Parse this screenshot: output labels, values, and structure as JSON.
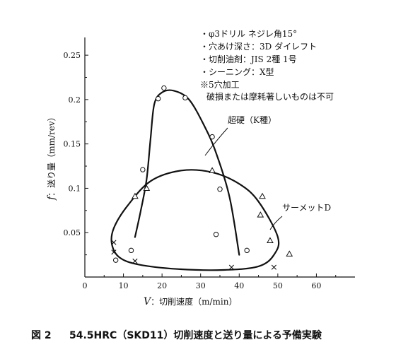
{
  "chart_data": {
    "type": "scatter",
    "title": "",
    "xlabel_var": "V",
    "xlabel": "：切削速度（m/min）",
    "ylabel_var": "f",
    "ylabel": "：送り量（mm/rev）",
    "xlim": [
      0,
      70
    ],
    "ylim": [
      0,
      0.27
    ],
    "x_ticks": [
      "0",
      "10",
      "20",
      "30",
      "40",
      "50",
      "60"
    ],
    "x_tick_values": [
      0,
      10,
      20,
      30,
      40,
      50,
      60
    ],
    "y_ticks": [
      "0.05",
      "0.1",
      "0.15",
      "0.2",
      "0.25"
    ],
    "y_tick_values": [
      0.05,
      0.1,
      0.15,
      0.2,
      0.25
    ],
    "grid": false,
    "notes": [
      "・φ3ドリル ネジレ角15°",
      "・穴あけ深さ：3D ダイレフト",
      "・切削油剤：JIS 2種 1号",
      "・シーニング：X型",
      "※5穴加工",
      "破損または摩耗著しいものは不可"
    ],
    "series": [
      {
        "marker": "circle",
        "points": [
          [
            8,
            0.019
          ],
          [
            12,
            0.03
          ],
          [
            15,
            0.121
          ],
          [
            19,
            0.201
          ],
          [
            20.5,
            0.213
          ],
          [
            26,
            0.202
          ],
          [
            33,
            0.158
          ],
          [
            35,
            0.099
          ],
          [
            34,
            0.048
          ],
          [
            42,
            0.03
          ]
        ]
      },
      {
        "marker": "triangle",
        "points": [
          [
            13,
            0.091
          ],
          [
            16,
            0.1
          ],
          [
            33,
            0.12
          ],
          [
            46,
            0.091
          ],
          [
            45.5,
            0.07
          ],
          [
            48,
            0.041
          ],
          [
            53,
            0.026
          ]
        ]
      },
      {
        "marker": "cross",
        "points": [
          [
            7.5,
            0.039
          ],
          [
            7.5,
            0.028
          ],
          [
            13,
            0.018
          ],
          [
            38,
            0.011
          ],
          [
            49,
            0.011
          ]
        ]
      }
    ],
    "regions": [
      {
        "name": "超硬（K種）",
        "boundary": [
          [
            13,
            0.045
          ],
          [
            14.5,
            0.075
          ],
          [
            16,
            0.11
          ],
          [
            17,
            0.155
          ],
          [
            18,
            0.195
          ],
          [
            20,
            0.208
          ],
          [
            23,
            0.21
          ],
          [
            27,
            0.2
          ],
          [
            31,
            0.17
          ],
          [
            34,
            0.14
          ],
          [
            37.5,
            0.09
          ],
          [
            40,
            0.025
          ]
        ]
      },
      {
        "name": "サーメットD",
        "boundary": [
          [
            7,
            0.037
          ],
          [
            7.5,
            0.055
          ],
          [
            11,
            0.08
          ],
          [
            17,
            0.108
          ],
          [
            25,
            0.12
          ],
          [
            33,
            0.118
          ],
          [
            40,
            0.105
          ],
          [
            45,
            0.085
          ],
          [
            50,
            0.045
          ],
          [
            49,
            0.025
          ],
          [
            45,
            0.012
          ],
          [
            36,
            0.008
          ],
          [
            24,
            0.009
          ],
          [
            14,
            0.014
          ],
          [
            9,
            0.022
          ]
        ]
      }
    ]
  },
  "caption": {
    "figure_no": "図 2",
    "text": "54.5HRC（SKD11）切削速度と送り量による予備実験"
  }
}
